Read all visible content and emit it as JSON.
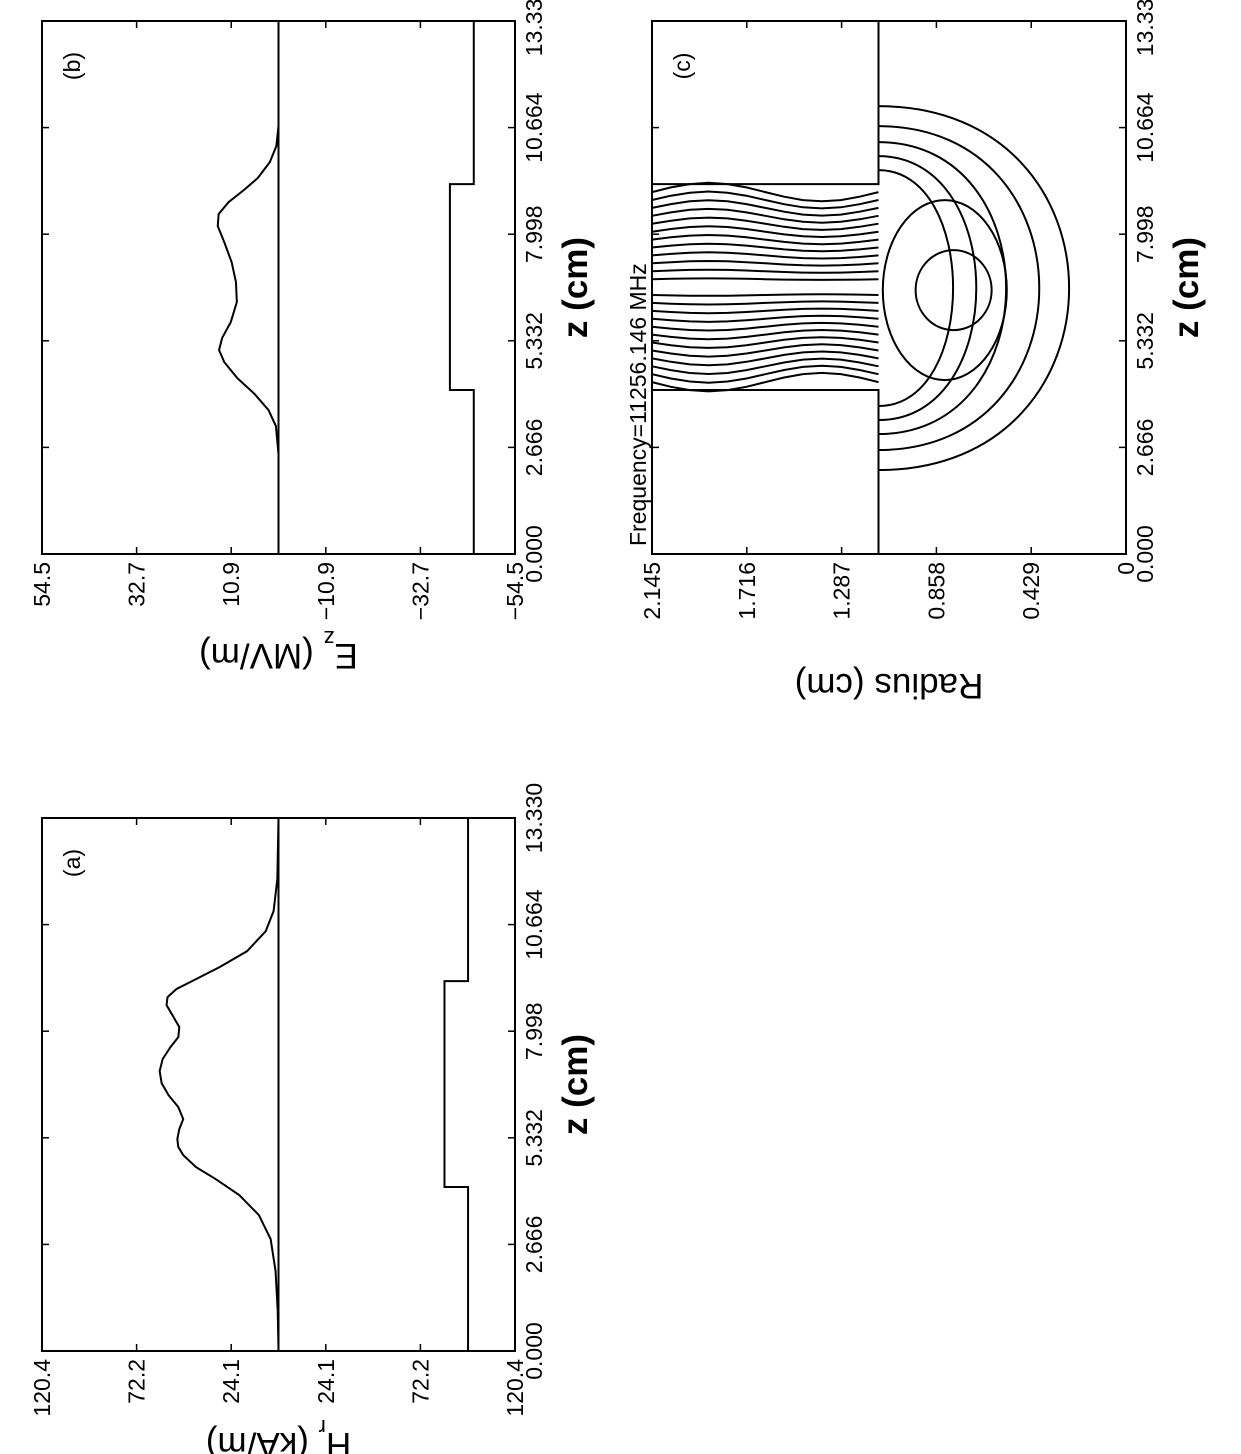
{
  "chart_data": [
    {
      "panel": "(a)",
      "type": "line",
      "x_ticks": [
        "0.000",
        "2.666",
        "5.332",
        "7.998",
        "10.664",
        "13.330"
      ],
      "y_ticks": [
        "120.4",
        "72.2",
        "24.1",
        "24.1",
        "72.2",
        "120.4"
      ],
      "xlabel": "z (cm)",
      "ylabel": "H_r (kA/m)",
      "ylim": [
        -120.4,
        120.4
      ],
      "xlim": [
        0.0,
        13.33
      ],
      "series": [
        {
          "x": [
            0.0,
            1.0,
            2.0,
            2.8,
            3.4,
            3.9,
            4.3,
            4.6,
            4.9,
            5.1,
            5.3,
            5.55,
            5.8,
            6.1,
            6.4,
            6.7,
            7.0,
            7.3,
            7.6,
            7.85,
            8.1,
            8.4,
            8.65,
            8.85,
            9.05,
            9.3,
            9.6,
            10.0,
            10.5,
            11.0,
            11.8,
            13.33
          ],
          "y": [
            0.0,
            0.4,
            1.5,
            4.0,
            10.0,
            20.0,
            32.0,
            42.0,
            48.5,
            51.0,
            51.5,
            50.5,
            48.5,
            51.0,
            56.0,
            59.5,
            60.5,
            59.0,
            55.0,
            51.0,
            50.5,
            54.0,
            57.0,
            56.5,
            52.0,
            42.0,
            30.0,
            16.0,
            6.5,
            2.5,
            0.6,
            0.0
          ]
        }
      ],
      "profile": {
        "x": [
          0.0,
          4.1,
          4.1,
          9.25,
          9.25,
          13.33
        ],
        "y": [
          -96.5,
          -96.5,
          -84.5,
          -84.5,
          -96.5,
          -96.5
        ]
      }
    },
    {
      "panel": "(b)",
      "type": "line",
      "x_ticks": [
        "0.000",
        "2.666",
        "5.332",
        "7.998",
        "10.664",
        "13.330"
      ],
      "y_ticks": [
        "54.5",
        "32.7",
        "10.9",
        "−10.9",
        "−32.7",
        "−54.5"
      ],
      "xlabel": "z (cm)",
      "ylabel": "E_z (MV/m)",
      "ylim": [
        -54.5,
        54.5
      ],
      "xlim": [
        0.0,
        13.33
      ],
      "series": [
        {
          "x": [
            0.0,
            2.5,
            3.2,
            3.6,
            4.0,
            4.4,
            4.8,
            5.1,
            5.4,
            5.8,
            6.3,
            6.8,
            7.3,
            7.8,
            8.2,
            8.5,
            8.8,
            9.1,
            9.4,
            9.8,
            10.2,
            10.7,
            13.33
          ],
          "y": [
            0.0,
            0.0,
            0.6,
            2.3,
            5.5,
            9.5,
            12.5,
            13.7,
            13.0,
            11.0,
            9.6,
            9.8,
            10.8,
            12.5,
            14.0,
            13.8,
            11.5,
            8.0,
            4.8,
            2.0,
            0.5,
            0.0,
            0.0
          ]
        }
      ],
      "profile": {
        "x": [
          0.0,
          4.1,
          4.1,
          9.25,
          9.25,
          13.33
        ],
        "y": [
          -45.0,
          -45.0,
          -39.5,
          -39.5,
          -45.0,
          -45.0
        ]
      }
    },
    {
      "panel": "(c)",
      "type": "contour",
      "x_ticks": [
        "0.000",
        "2.666",
        "5.332",
        "7.998",
        "10.664",
        "13.330"
      ],
      "y_ticks": [
        "2.145",
        "1.716",
        "1.287",
        "0.858",
        "0.429",
        "0"
      ],
      "xlabel": "z (cm)",
      "ylabel": "Radius (cm)",
      "ylim": [
        0,
        2.145
      ],
      "xlim": [
        0.0,
        13.33
      ],
      "annotation": "Frequency=11256.146 MHz",
      "cavity_boundary": {
        "x": [
          0.0,
          4.1,
          4.1,
          9.25,
          9.25,
          13.33
        ],
        "y": [
          1.12,
          1.12,
          2.145,
          2.145,
          1.12,
          1.12
        ]
      },
      "contour_count": 30
    }
  ]
}
